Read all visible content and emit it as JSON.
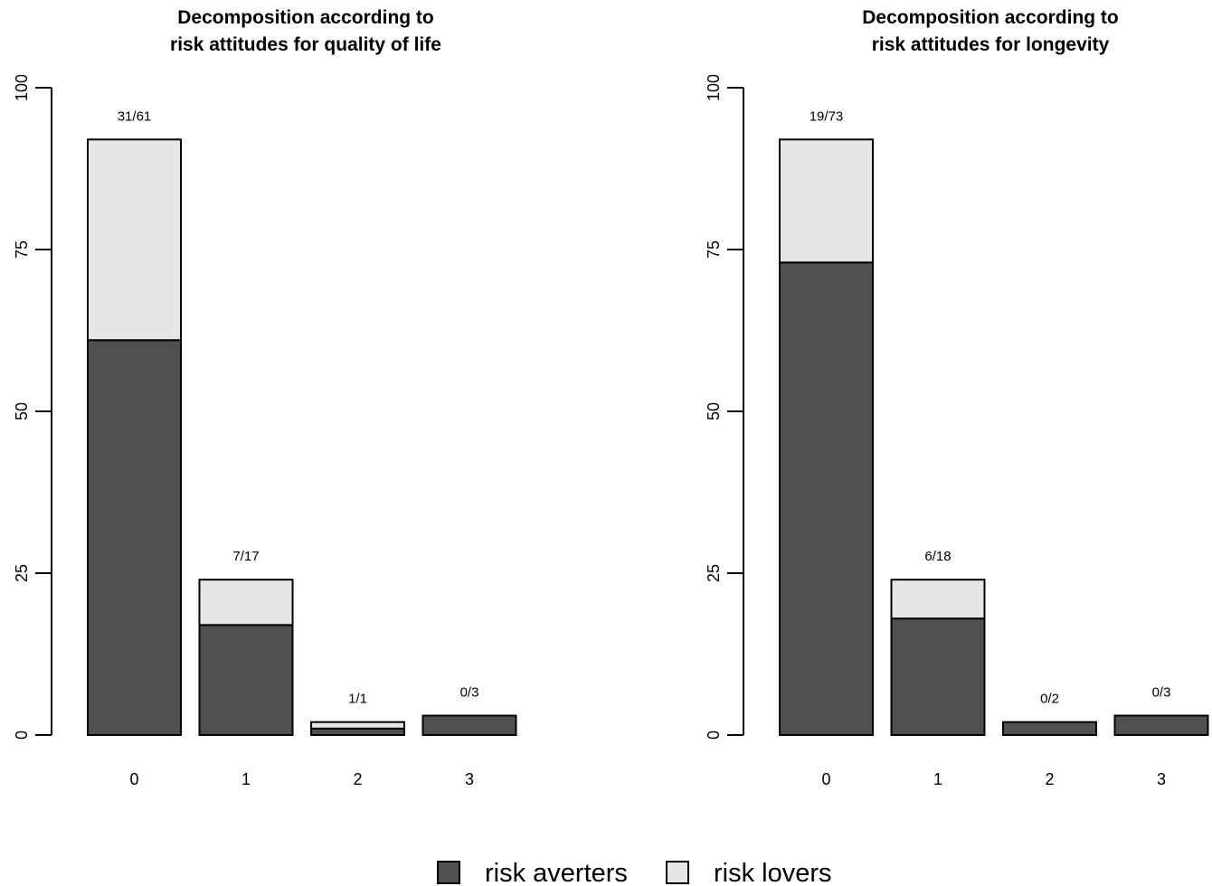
{
  "chart_data": [
    {
      "type": "bar",
      "stacked": true,
      "title_lines": [
        "Decomposition according to",
        "risk attitudes for quality of life"
      ],
      "xlabel": "",
      "ylabel": "",
      "categories": [
        "0",
        "1",
        "2",
        "3"
      ],
      "ylim": [
        0,
        100
      ],
      "yticks": [
        "0",
        "25",
        "50",
        "75",
        "100"
      ],
      "series": [
        {
          "name": "risk averters",
          "values": [
            61,
            17,
            1,
            3
          ]
        },
        {
          "name": "risk lovers",
          "values": [
            31,
            7,
            1,
            0
          ]
        }
      ],
      "bar_labels": [
        "31/61",
        "7/17",
        "1/1",
        "0/3"
      ]
    },
    {
      "type": "bar",
      "stacked": true,
      "title_lines": [
        "Decomposition according to",
        "risk attitudes for longevity"
      ],
      "xlabel": "",
      "ylabel": "",
      "categories": [
        "0",
        "1",
        "2",
        "3"
      ],
      "ylim": [
        0,
        100
      ],
      "yticks": [
        "0",
        "25",
        "50",
        "75",
        "100"
      ],
      "series": [
        {
          "name": "risk averters",
          "values": [
            73,
            18,
            2,
            3
          ]
        },
        {
          "name": "risk lovers",
          "values": [
            19,
            6,
            0,
            0
          ]
        }
      ],
      "bar_labels": [
        "19/73",
        "6/18",
        "0/2",
        "0/3"
      ]
    }
  ],
  "legend": {
    "placement": "bottom",
    "items": [
      {
        "label": "risk averters",
        "color": "#505050"
      },
      {
        "label": "risk lovers",
        "color": "#e6e6e6"
      }
    ]
  },
  "colors": {
    "risk_averters": "#505050",
    "risk_lovers": "#e6e6e6",
    "outline": "#000000"
  }
}
